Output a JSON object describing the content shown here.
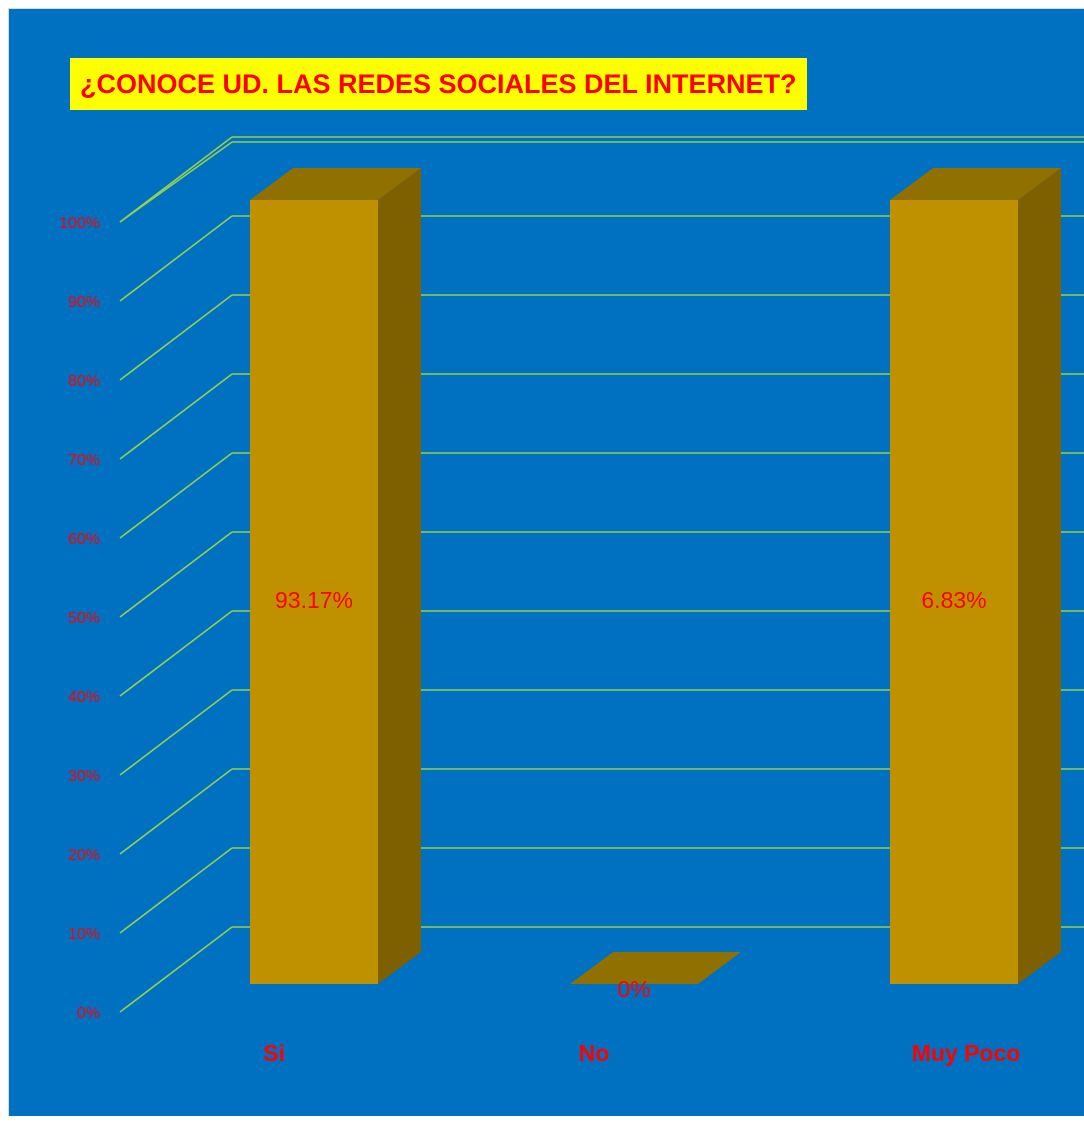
{
  "chart_data": {
    "type": "bar",
    "title": "¿CONOCE UD. LAS REDES SOCIALES DEL INTERNET?",
    "categories": [
      "Si",
      "No",
      "Muy Poco"
    ],
    "values": [
      93.17,
      0,
      6.83
    ],
    "data_labels": [
      "93.17%",
      "0%",
      "6.83%"
    ],
    "ylim": [
      0,
      100
    ],
    "yticks": [
      "0%",
      "10%",
      "20%",
      "30%",
      "40%",
      "50%",
      "60%",
      "70%",
      "80%",
      "90%",
      "100%"
    ],
    "grid": true,
    "legend": "none",
    "colors": {
      "background": "#0070c0",
      "bar_front": "#bf9000",
      "bar_side": "#7f6000",
      "bar_top": "#8f7000",
      "gridline": "#92d050",
      "text": "#ff0000",
      "title_bg": "#ffff00"
    }
  }
}
